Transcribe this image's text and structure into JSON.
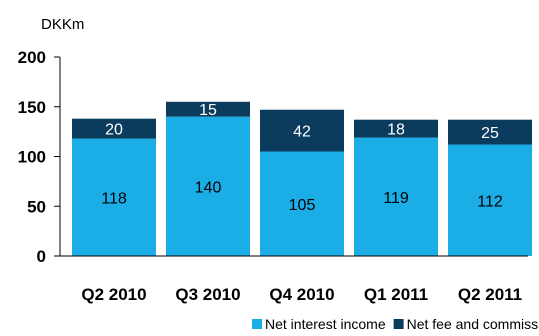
{
  "chart_data": {
    "type": "bar",
    "stacked": true,
    "unit": "DKKm",
    "categories": [
      "Q2 2010",
      "Q3 2010",
      "Q4 2010",
      "Q1 2011",
      "Q2 2011"
    ],
    "series": [
      {
        "name": "Net interest income",
        "values": [
          118,
          140,
          105,
          119,
          112
        ],
        "color": "#1AADE6",
        "label_color": "#000000"
      },
      {
        "name": "Net fee and commissions income",
        "values": [
          20,
          15,
          42,
          18,
          25
        ],
        "color": "#0B3C5D",
        "label_color": "#FFFFFF"
      }
    ],
    "ylim": [
      0,
      200
    ],
    "yticks": [
      "0",
      "50",
      "100",
      "150",
      "200"
    ],
    "grid": false,
    "legend_position": "bottom"
  }
}
